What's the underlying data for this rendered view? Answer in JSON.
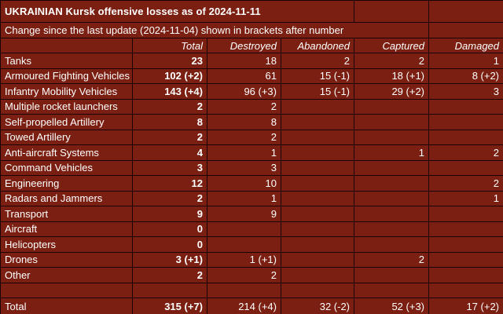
{
  "header": {
    "title": "UKRAINIAN Kursk offensive losses as of 2024-11-11",
    "subtitle": "Change since the last update (2024-11-04) shown in brackets after number"
  },
  "colors": {
    "background": "#7a1f11",
    "border": "#1a0300",
    "text": "#ffffff"
  },
  "chart_data": {
    "type": "table",
    "columns": [
      "",
      "Total",
      "Destroyed",
      "Abandoned",
      "Captured",
      "Damaged"
    ],
    "rows": [
      [
        "Tanks",
        "23",
        "18",
        "2",
        "2",
        "1"
      ],
      [
        "Armoured Fighting Vehicles",
        "102 (+2)",
        "61",
        "15 (-1)",
        "18 (+1)",
        "8 (+2)"
      ],
      [
        "Infantry Mobility Vehicles",
        "143 (+4)",
        "96 (+3)",
        "15 (-1)",
        "29 (+2)",
        "3"
      ],
      [
        "Multiple rocket launchers",
        "2",
        "2",
        "",
        "",
        ""
      ],
      [
        "Self-propelled Artillery",
        "8",
        "8",
        "",
        "",
        ""
      ],
      [
        "Towed Artillery",
        "2",
        "2",
        "",
        "",
        ""
      ],
      [
        "Anti-aircraft Systems",
        "4",
        "1",
        "",
        "1",
        "2"
      ],
      [
        "Command Vehicles",
        "3",
        "3",
        "",
        "",
        ""
      ],
      [
        "Engineering",
        "12",
        "10",
        "",
        "",
        "2"
      ],
      [
        "Radars and Jammers",
        "2",
        "1",
        "",
        "",
        "1"
      ],
      [
        "Transport",
        "9",
        "9",
        "",
        "",
        ""
      ],
      [
        "Aircraft",
        "0",
        "",
        "",
        "",
        ""
      ],
      [
        "Helicopters",
        "0",
        "",
        "",
        "",
        ""
      ],
      [
        "Drones",
        "3 (+1)",
        "1 (+1)",
        "",
        "2",
        ""
      ],
      [
        "Other",
        "2",
        "2",
        "",
        "",
        ""
      ]
    ],
    "total_row": [
      "Total",
      "315 (+7)",
      "214 (+4)",
      "32 (-2)",
      "52 (+3)",
      "17 (+2)"
    ]
  }
}
